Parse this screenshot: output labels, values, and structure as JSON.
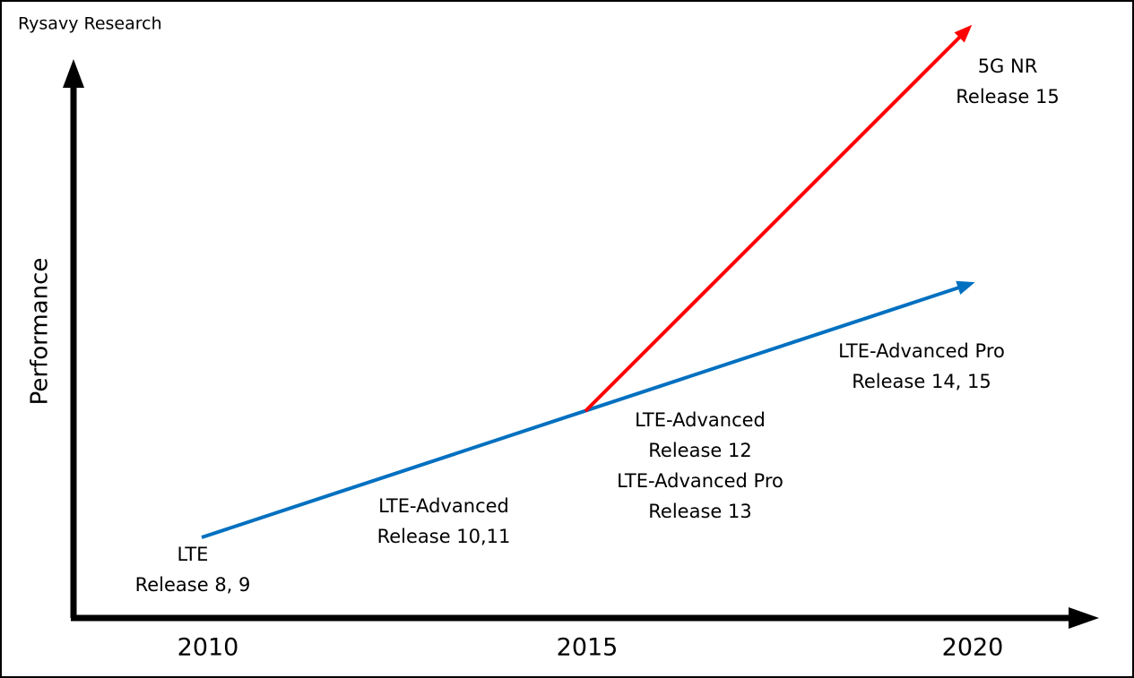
{
  "source": "Rysavy Research",
  "y_axis_label": "Performance",
  "x_labels": [
    "2010",
    "2015",
    "2020"
  ],
  "annotations": [
    {
      "lines": [
        "LTE",
        "Release 8, 9"
      ]
    },
    {
      "lines": [
        "LTE-Advanced",
        "Release 10,11"
      ]
    },
    {
      "lines": [
        "LTE-Advanced",
        "Release 12",
        "LTE-Advanced Pro",
        "Release 13"
      ]
    },
    {
      "lines": [
        "LTE-Advanced Pro",
        "Release 14, 15"
      ]
    },
    {
      "lines": [
        "5G NR",
        "Release 15"
      ]
    }
  ]
}
